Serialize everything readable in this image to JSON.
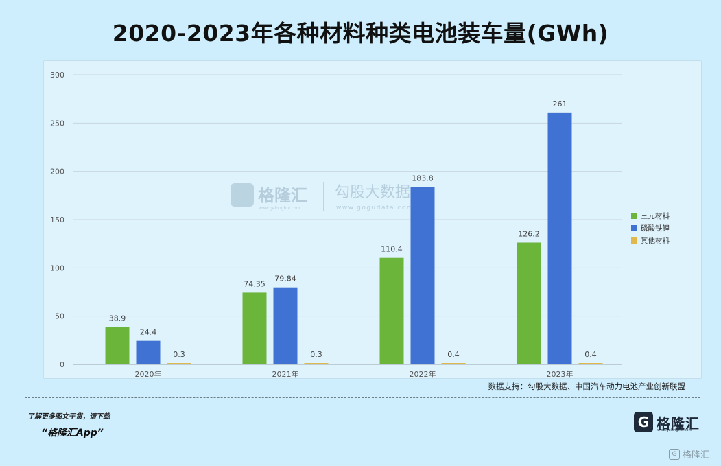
{
  "title": "2020-2023年各种材料种类电池装车量(GWh)",
  "chart_data": {
    "type": "bar",
    "categories": [
      "2020年",
      "2021年",
      "2022年",
      "2023年"
    ],
    "series": [
      {
        "name": "三元材料",
        "color": "#6bb53a",
        "values": [
          38.9,
          74.35,
          110.4,
          126.2
        ],
        "labels": [
          "38.9",
          "74.35",
          "110.4",
          "126.2"
        ]
      },
      {
        "name": "磷酸铁锂",
        "color": "#3f72d2",
        "values": [
          24.4,
          79.84,
          183.8,
          261
        ],
        "labels": [
          "24.4",
          "79.84",
          "183.8",
          "261"
        ]
      },
      {
        "name": "其他材料",
        "color": "#e0b84c",
        "values": [
          0.3,
          0.3,
          0.4,
          0.4
        ],
        "labels": [
          "0.3",
          "0.3",
          "0.4",
          "0.4"
        ]
      }
    ],
    "yticks": [
      "0",
      "50",
      "100",
      "150",
      "200",
      "250",
      "300"
    ],
    "ylim": [
      0,
      300
    ],
    "grid": true,
    "legend_position": "right"
  },
  "watermark": {
    "brand1": "格隆汇",
    "brand1_url": "www.gelonghui.com",
    "brand2": "勾股大数据",
    "brand2_url": "www.gogudata.com"
  },
  "source_text": "数据支持：勾股大数据、中国汽车动力电池产业创新联盟",
  "footer": {
    "line1": "了解更多图文干货，请下载",
    "line2": "“格隆汇App”",
    "brand_logo_letter": "G",
    "brand_name": "格隆汇",
    "brand_url": "www.gelonghui.com",
    "corner_brand": "格隆汇"
  }
}
